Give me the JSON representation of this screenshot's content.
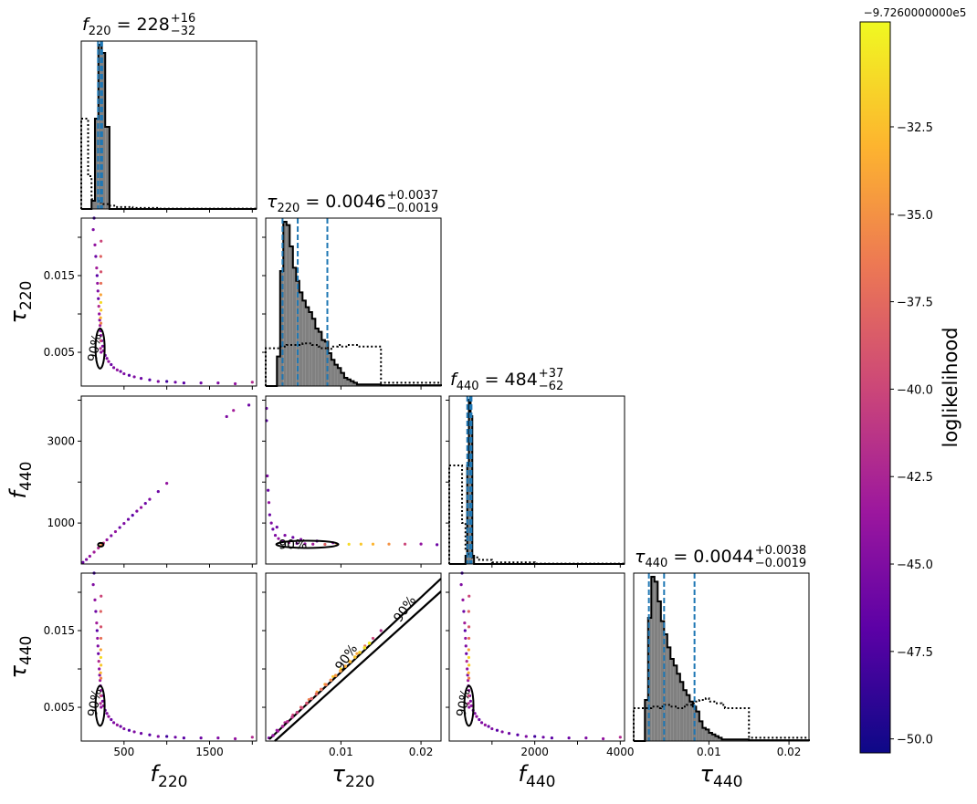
{
  "colorbar": {
    "label": "loglikelihood",
    "offset_text": "−9.7260000000e5",
    "ticks": [
      -32.5,
      -35.0,
      -37.5,
      -40.0,
      -42.5,
      -45.0,
      -47.5,
      -50.0
    ],
    "tick_labels": [
      "−32.5",
      "−35.0",
      "−37.5",
      "−40.0",
      "−42.5",
      "−45.0",
      "−47.5",
      "−50.0"
    ],
    "range": [
      -50.4,
      -29.5
    ],
    "colormap": "plasma",
    "colors": [
      "#0d0887",
      "#5c01a6",
      "#9c179e",
      "#cc4778",
      "#ed7953",
      "#fdb42f",
      "#f0f921"
    ]
  },
  "titles": {
    "f220": {
      "param": "f",
      "sub": "220",
      "value": " = 228",
      "plus": "+16",
      "minus": "−32"
    },
    "tau220": {
      "param": "τ",
      "sub": "220",
      "value": " = 0.0046",
      "plus": "+0.0037",
      "minus": "−0.0019"
    },
    "f440": {
      "param": "f",
      "sub": "440",
      "value": " = 484",
      "plus": "+37",
      "minus": "−62"
    },
    "tau440": {
      "param": "τ",
      "sub": "440",
      "value": " = 0.0044",
      "plus": "+0.0038",
      "minus": "−0.0019"
    }
  },
  "axis_labels": {
    "x": [
      {
        "param": "f",
        "sub": "220"
      },
      {
        "param": "τ",
        "sub": "220"
      },
      {
        "param": "f",
        "sub": "440"
      },
      {
        "param": "τ",
        "sub": "440"
      }
    ],
    "y": [
      {
        "param": "τ",
        "sub": "220"
      },
      {
        "param": "f",
        "sub": "440"
      },
      {
        "param": "τ",
        "sub": "440"
      }
    ]
  },
  "tick_labels": {
    "f220": [
      "500",
      "1500"
    ],
    "tau220": [
      "0.01",
      "0.02"
    ],
    "f440": [
      "2000",
      "4000"
    ],
    "tau440": [
      "0.01",
      "0.02"
    ],
    "y_tau220": [
      "0.015",
      "0.005"
    ],
    "y_f440": [
      "3000",
      "1000"
    ],
    "y_tau440": [
      "0.015",
      "0.005"
    ]
  },
  "contour_label": "90%",
  "chart_data": {
    "type": "scatter",
    "subtype": "corner-plot",
    "parameters": [
      "f220",
      "tau220",
      "f440",
      "tau440"
    ],
    "ranges": {
      "f220": [
        0,
        2050
      ],
      "tau220": [
        0.0006,
        0.0225
      ],
      "f440": [
        0,
        4100
      ],
      "tau440": [
        0.0006,
        0.0225
      ]
    },
    "ticks": {
      "f220": [
        500,
        1500
      ],
      "tau220": [
        0.01,
        0.02
      ],
      "f440": [
        2000,
        4000
      ],
      "tau440": [
        0.01,
        0.02
      ]
    },
    "minor_ticks": {
      "f220": [
        1000,
        2000
      ],
      "f440": [
        1000,
        3000
      ]
    },
    "y_ticks": {
      "tau220": [
        0.015,
        0.005
      ],
      "f440": [
        3000,
        1000
      ],
      "tau440": [
        0.015,
        0.005
      ]
    },
    "y_minor_ticks": {
      "tau220": [
        0.01,
        0.02
      ],
      "f440": [
        2000,
        4000
      ],
      "tau440": [
        0.01,
        0.02
      ]
    },
    "quantiles": {
      "f220": [
        196,
        228,
        244
      ],
      "tau220": [
        0.0027,
        0.0046,
        0.0083
      ],
      "f440": [
        422,
        484,
        521
      ],
      "tau440": [
        0.0025,
        0.0044,
        0.0082
      ]
    },
    "histograms": {
      "f220": {
        "bin_edges": [
          0,
          80,
          120,
          160,
          200,
          240,
          280,
          330,
          400,
          600,
          900,
          2050
        ],
        "posterior": [
          0,
          0,
          0.05,
          0.55,
          1.0,
          0.95,
          0.5,
          0,
          0,
          0,
          0
        ],
        "prior": [
          0.55,
          0.2,
          0.06,
          0.05,
          0.04,
          0.03,
          0.03,
          0.02,
          0.012,
          0.006,
          0.002
        ]
      },
      "tau220": {
        "bin_edges": [
          0.0006,
          0.002,
          0.0024,
          0.0028,
          0.0032,
          0.0036,
          0.004,
          0.0044,
          0.0048,
          0.0052,
          0.0056,
          0.006,
          0.0064,
          0.0068,
          0.0072,
          0.0076,
          0.008,
          0.0084,
          0.0088,
          0.0092,
          0.0096,
          0.01,
          0.0104,
          0.0108,
          0.0112,
          0.0116,
          0.012,
          0.015,
          0.0225
        ],
        "posterior": [
          0,
          0.18,
          0.7,
          1.0,
          0.98,
          0.85,
          0.72,
          0.64,
          0.57,
          0.52,
          0.48,
          0.45,
          0.41,
          0.35,
          0.33,
          0.28,
          0.27,
          0.2,
          0.16,
          0.13,
          0.11,
          0.08,
          0.05,
          0.04,
          0.03,
          0.02,
          0.01,
          0.005
        ],
        "prior": [
          0.23,
          0.23,
          0.24,
          0.24,
          0.25,
          0.25,
          0.25,
          0.25,
          0.25,
          0.26,
          0.26,
          0.26,
          0.25,
          0.25,
          0.24,
          0.23,
          0.23,
          0.22,
          0.24,
          0.24,
          0.25,
          0.24,
          0.24,
          0.25,
          0.25,
          0.25,
          0.24,
          0.02
        ]
      },
      "f440": {
        "bin_edges": [
          0,
          300,
          380,
          420,
          460,
          500,
          540,
          580,
          700,
          1000,
          2000,
          4100
        ],
        "posterior": [
          0,
          0,
          0.05,
          0.6,
          1.0,
          0.9,
          0.05,
          0,
          0,
          0,
          0
        ],
        "prior": [
          0.6,
          0.25,
          0.08,
          0.06,
          0.05,
          0.05,
          0.04,
          0.04,
          0.025,
          0.01,
          0.002
        ]
      },
      "tau440": {
        "bin_edges": [
          0.0006,
          0.002,
          0.0024,
          0.0028,
          0.0032,
          0.0036,
          0.004,
          0.0044,
          0.0048,
          0.0052,
          0.0056,
          0.006,
          0.0064,
          0.0068,
          0.0072,
          0.0076,
          0.008,
          0.0084,
          0.0088,
          0.0092,
          0.0096,
          0.01,
          0.0104,
          0.0108,
          0.0112,
          0.0116,
          0.012,
          0.015,
          0.0225
        ],
        "posterior": [
          0,
          0.25,
          0.75,
          1.0,
          0.97,
          0.85,
          0.73,
          0.65,
          0.57,
          0.5,
          0.46,
          0.41,
          0.36,
          0.31,
          0.28,
          0.24,
          0.21,
          0.18,
          0.12,
          0.08,
          0.07,
          0.05,
          0.04,
          0.03,
          0.02,
          0.01,
          0.01,
          0.005
        ],
        "prior": [
          0.2,
          0.2,
          0.2,
          0.21,
          0.21,
          0.2,
          0.21,
          0.22,
          0.22,
          0.21,
          0.21,
          0.2,
          0.2,
          0.21,
          0.22,
          0.22,
          0.23,
          0.24,
          0.25,
          0.25,
          0.26,
          0.24,
          0.24,
          0.23,
          0.23,
          0.22,
          0.2,
          0.02
        ]
      }
    },
    "point_sets": {
      "tau_vs_f": [
        [
          140,
          0.021,
          -45
        ],
        [
          150,
          0.0225,
          -48
        ],
        [
          160,
          0.019,
          -44
        ],
        [
          170,
          0.0175,
          -46
        ],
        [
          180,
          0.016,
          -43
        ],
        [
          185,
          0.015,
          -47
        ],
        [
          190,
          0.014,
          -44
        ],
        [
          195,
          0.013,
          -45
        ],
        [
          200,
          0.012,
          -46
        ],
        [
          205,
          0.011,
          -42
        ],
        [
          210,
          0.01,
          -44
        ],
        [
          215,
          0.0092,
          -45
        ],
        [
          220,
          0.0085,
          -43
        ],
        [
          225,
          0.0078,
          -45
        ],
        [
          230,
          0.0072,
          -44
        ],
        [
          240,
          0.0065,
          -46
        ],
        [
          250,
          0.0058,
          -45
        ],
        [
          260,
          0.0052,
          -44
        ],
        [
          280,
          0.0046,
          -46
        ],
        [
          300,
          0.0042,
          -45
        ],
        [
          320,
          0.0038,
          -44
        ],
        [
          350,
          0.0034,
          -46
        ],
        [
          380,
          0.003,
          -45
        ],
        [
          420,
          0.0027,
          -44
        ],
        [
          460,
          0.0025,
          -46
        ],
        [
          500,
          0.0022,
          -45
        ],
        [
          560,
          0.002,
          -47
        ],
        [
          620,
          0.0018,
          -45
        ],
        [
          700,
          0.0016,
          -46
        ],
        [
          800,
          0.0014,
          -47
        ],
        [
          900,
          0.0012,
          -45
        ],
        [
          1000,
          0.0012,
          -48
        ],
        [
          1100,
          0.0011,
          -46
        ],
        [
          1200,
          0.001,
          -47
        ],
        [
          1400,
          0.001,
          -46
        ],
        [
          1600,
          0.001,
          -45
        ],
        [
          1800,
          0.0009,
          -44
        ],
        [
          2000,
          0.0011,
          -42
        ],
        [
          230,
          0.0155,
          -39
        ],
        [
          228,
          0.0175,
          -38
        ],
        [
          232,
          0.0195,
          -40
        ],
        [
          230,
          0.014,
          -37
        ],
        [
          228,
          0.0125,
          -34
        ],
        [
          229,
          0.0115,
          -31
        ],
        [
          231,
          0.0105,
          -32
        ],
        [
          226,
          0.0095,
          -33
        ],
        [
          230,
          0.0088,
          -36
        ],
        [
          228,
          0.0065,
          -40
        ],
        [
          225,
          0.0055,
          -42
        ],
        [
          232,
          0.005,
          -44
        ]
      ],
      "f440_vs_f220": [
        [
          20,
          40,
          -46
        ],
        [
          60,
          110,
          -45
        ],
        [
          100,
          190,
          -44
        ],
        [
          150,
          290,
          -43
        ],
        [
          200,
          390,
          -42
        ],
        [
          228,
          440,
          -31
        ],
        [
          240,
          470,
          -36
        ],
        [
          260,
          510,
          -41
        ],
        [
          300,
          590,
          -44
        ],
        [
          350,
          690,
          -45
        ],
        [
          400,
          790,
          -44
        ],
        [
          450,
          890,
          -46
        ],
        [
          500,
          990,
          -45
        ],
        [
          550,
          1090,
          -46
        ],
        [
          600,
          1190,
          -47
        ],
        [
          650,
          1290,
          -45
        ],
        [
          700,
          1380,
          -44
        ],
        [
          750,
          1480,
          -46
        ],
        [
          800,
          1580,
          -45
        ],
        [
          900,
          1770,
          -46
        ],
        [
          1000,
          1970,
          -44
        ],
        [
          1700,
          3600,
          -45
        ],
        [
          1780,
          3750,
          -43
        ],
        [
          1960,
          3880,
          -46
        ]
      ],
      "f440_vs_tau220": [
        [
          0.0007,
          3800,
          -46
        ],
        [
          0.0007,
          3500,
          -47
        ],
        [
          0.0008,
          2150,
          -45
        ],
        [
          0.0009,
          1800,
          -46
        ],
        [
          0.001,
          1500,
          -44
        ],
        [
          0.0011,
          1200,
          -46
        ],
        [
          0.0013,
          1000,
          -45
        ],
        [
          0.0015,
          850,
          -46
        ],
        [
          0.0018,
          700,
          -45
        ],
        [
          0.0022,
          620,
          -44
        ],
        [
          0.0027,
          560,
          -45
        ],
        [
          0.0035,
          520,
          -43
        ],
        [
          0.0045,
          500,
          -45
        ],
        [
          0.0055,
          490,
          -44
        ],
        [
          0.0065,
          485,
          -43
        ],
        [
          0.008,
          480,
          -38
        ],
        [
          0.0095,
          480,
          -34
        ],
        [
          0.011,
          482,
          -31
        ],
        [
          0.0125,
          484,
          -32
        ],
        [
          0.014,
          484,
          -33
        ],
        [
          0.016,
          486,
          -35
        ],
        [
          0.018,
          486,
          -40
        ],
        [
          0.02,
          488,
          -44
        ],
        [
          0.022,
          470,
          -46
        ],
        [
          0.005,
          600,
          -45
        ],
        [
          0.007,
          560,
          -46
        ],
        [
          0.009,
          520,
          -44
        ],
        [
          0.004,
          650,
          -46
        ],
        [
          0.003,
          700,
          -45
        ],
        [
          0.002,
          900,
          -46
        ]
      ],
      "tau440_vs_tau220": [
        [
          0.001,
          0.001,
          -45
        ],
        [
          0.002,
          0.002,
          -44
        ],
        [
          0.003,
          0.003,
          -42
        ],
        [
          0.004,
          0.004,
          -40
        ],
        [
          0.005,
          0.005,
          -38
        ],
        [
          0.006,
          0.006,
          -36
        ],
        [
          0.007,
          0.007,
          -34
        ],
        [
          0.008,
          0.008,
          -33
        ],
        [
          0.009,
          0.009,
          -32
        ],
        [
          0.01,
          0.01,
          -31
        ],
        [
          0.011,
          0.011,
          -32
        ],
        [
          0.012,
          0.012,
          -34
        ],
        [
          0.013,
          0.013,
          -37
        ],
        [
          0.014,
          0.014,
          -40
        ],
        [
          0.015,
          0.015,
          -42
        ]
      ]
    },
    "contour_level": "90%"
  }
}
